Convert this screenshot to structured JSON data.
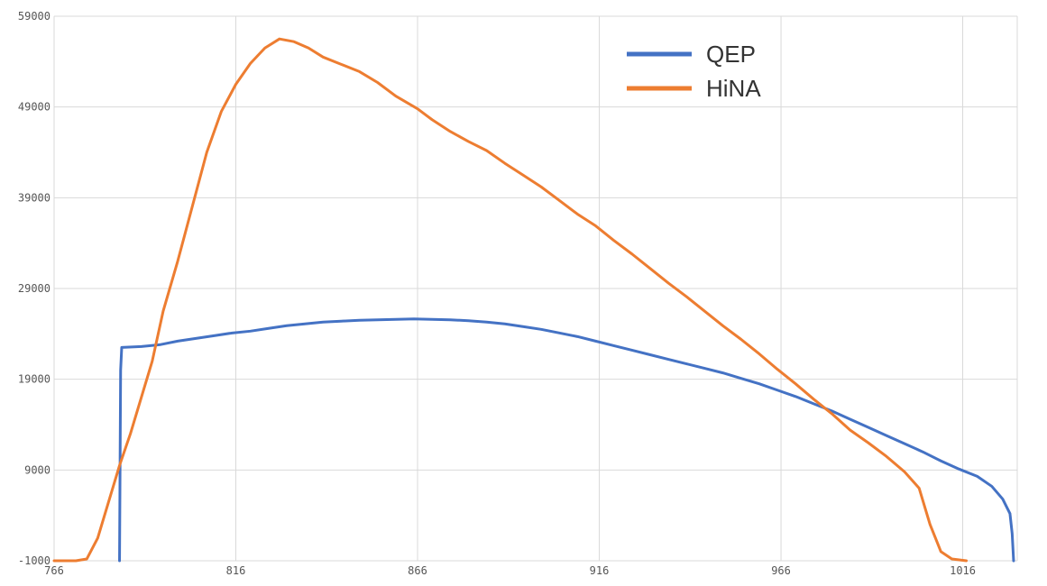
{
  "chart_data": {
    "type": "line",
    "title": "",
    "xlabel": "",
    "ylabel": "",
    "xlim": [
      766,
      1031
    ],
    "ylim": [
      -1000,
      59000
    ],
    "x_ticks": [
      766,
      816,
      866,
      916,
      966,
      1016
    ],
    "y_ticks": [
      -1000,
      9000,
      19000,
      29000,
      39000,
      49000,
      59000
    ],
    "x_tick_labels": [
      "766",
      "816",
      "866",
      "916",
      "966",
      "1016"
    ],
    "y_tick_labels": [
      "-1000",
      "9000",
      "19000",
      "29000",
      "39000",
      "49000",
      "59000"
    ],
    "grid": true,
    "legend_position": "top-right",
    "series": [
      {
        "name": "QEP",
        "color": "#4472c4",
        "points": [
          [
            784,
            -1000
          ],
          [
            784.3,
            20000
          ],
          [
            784.6,
            22500
          ],
          [
            790,
            22600
          ],
          [
            795,
            22800
          ],
          [
            800,
            23200
          ],
          [
            805,
            23500
          ],
          [
            810,
            23800
          ],
          [
            815,
            24100
          ],
          [
            820,
            24300
          ],
          [
            825,
            24600
          ],
          [
            830,
            24900
          ],
          [
            835,
            25100
          ],
          [
            840,
            25300
          ],
          [
            845,
            25400
          ],
          [
            850,
            25500
          ],
          [
            855,
            25550
          ],
          [
            860,
            25600
          ],
          [
            865,
            25650
          ],
          [
            870,
            25600
          ],
          [
            875,
            25550
          ],
          [
            880,
            25450
          ],
          [
            885,
            25300
          ],
          [
            890,
            25100
          ],
          [
            895,
            24800
          ],
          [
            900,
            24500
          ],
          [
            905,
            24100
          ],
          [
            910,
            23700
          ],
          [
            915,
            23200
          ],
          [
            920,
            22700
          ],
          [
            925,
            22200
          ],
          [
            930,
            21700
          ],
          [
            935,
            21200
          ],
          [
            940,
            20700
          ],
          [
            945,
            20200
          ],
          [
            950,
            19700
          ],
          [
            955,
            19100
          ],
          [
            960,
            18500
          ],
          [
            965,
            17800
          ],
          [
            970,
            17100
          ],
          [
            975,
            16300
          ],
          [
            980,
            15500
          ],
          [
            985,
            14600
          ],
          [
            990,
            13700
          ],
          [
            995,
            12800
          ],
          [
            1000,
            11900
          ],
          [
            1005,
            11000
          ],
          [
            1010,
            10000
          ],
          [
            1015,
            9100
          ],
          [
            1020,
            8300
          ],
          [
            1024,
            7200
          ],
          [
            1027,
            5800
          ],
          [
            1029,
            4200
          ],
          [
            1029.6,
            2000
          ],
          [
            1030,
            -1000
          ]
        ]
      },
      {
        "name": "HiNA",
        "color": "#ed7d31",
        "points": [
          [
            766,
            -1000
          ],
          [
            772,
            -1000
          ],
          [
            775,
            -800
          ],
          [
            778,
            1500
          ],
          [
            781,
            5500
          ],
          [
            784,
            9500
          ],
          [
            787,
            13000
          ],
          [
            790,
            17000
          ],
          [
            793,
            21000
          ],
          [
            796,
            26500
          ],
          [
            800,
            32000
          ],
          [
            804,
            38000
          ],
          [
            808,
            44000
          ],
          [
            812,
            48500
          ],
          [
            816,
            51500
          ],
          [
            820,
            53800
          ],
          [
            824,
            55500
          ],
          [
            828,
            56500
          ],
          [
            832,
            56200
          ],
          [
            836,
            55500
          ],
          [
            840,
            54500
          ],
          [
            845,
            53700
          ],
          [
            850,
            52900
          ],
          [
            855,
            51700
          ],
          [
            860,
            50200
          ],
          [
            866,
            48800
          ],
          [
            870,
            47600
          ],
          [
            875,
            46300
          ],
          [
            880,
            45200
          ],
          [
            885,
            44200
          ],
          [
            890,
            42800
          ],
          [
            895,
            41500
          ],
          [
            900,
            40200
          ],
          [
            905,
            38700
          ],
          [
            910,
            37200
          ],
          [
            915,
            35900
          ],
          [
            920,
            34300
          ],
          [
            925,
            32800
          ],
          [
            930,
            31200
          ],
          [
            935,
            29600
          ],
          [
            940,
            28100
          ],
          [
            945,
            26500
          ],
          [
            950,
            24900
          ],
          [
            955,
            23400
          ],
          [
            960,
            21800
          ],
          [
            965,
            20100
          ],
          [
            970,
            18500
          ],
          [
            975,
            16800
          ],
          [
            980,
            15200
          ],
          [
            985,
            13400
          ],
          [
            990,
            12000
          ],
          [
            995,
            10500
          ],
          [
            1000,
            8800
          ],
          [
            1004,
            7000
          ],
          [
            1007,
            3000
          ],
          [
            1010,
            0
          ],
          [
            1013,
            -800
          ],
          [
            1017,
            -1000
          ]
        ]
      }
    ]
  }
}
